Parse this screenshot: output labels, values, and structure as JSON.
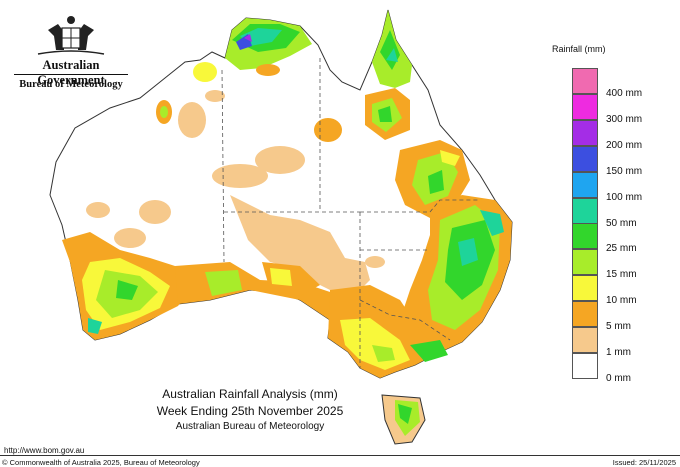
{
  "header": {
    "government": "Australian Government",
    "bureau": "Bureau of Meteorology",
    "logo_icon": "coat-of-arms-icon"
  },
  "legend": {
    "title": "Rainfall (mm)",
    "items": [
      {
        "label": "400 mm",
        "color": "#f06ab0"
      },
      {
        "label": "300 mm",
        "color": "#ee2be0"
      },
      {
        "label": "200 mm",
        "color": "#a42de6"
      },
      {
        "label": "150 mm",
        "color": "#3c4fe0"
      },
      {
        "label": "100 mm",
        "color": "#1fa5f0"
      },
      {
        "label": "50 mm",
        "color": "#1ed49a"
      },
      {
        "label": "25 mm",
        "color": "#32d62c"
      },
      {
        "label": "15 mm",
        "color": "#a8ec2a"
      },
      {
        "label": "10 mm",
        "color": "#f8f83a"
      },
      {
        "label": "5 mm",
        "color": "#f5a623"
      },
      {
        "label": "1 mm",
        "color": "#f6c98c"
      },
      {
        "label": "0 mm",
        "color": "#ffffff"
      }
    ]
  },
  "map_title": {
    "line1": "Australian Rainfall Analysis (mm)",
    "line2": "Week Ending 25th November 2025",
    "line3": "Australian Bureau of Meteorology"
  },
  "footer": {
    "url": "http://www.bom.gov.au",
    "copyright": "© Commonwealth of Australia 2025, Bureau of Meteorology",
    "issued": "Issued: 25/11/2025"
  }
}
